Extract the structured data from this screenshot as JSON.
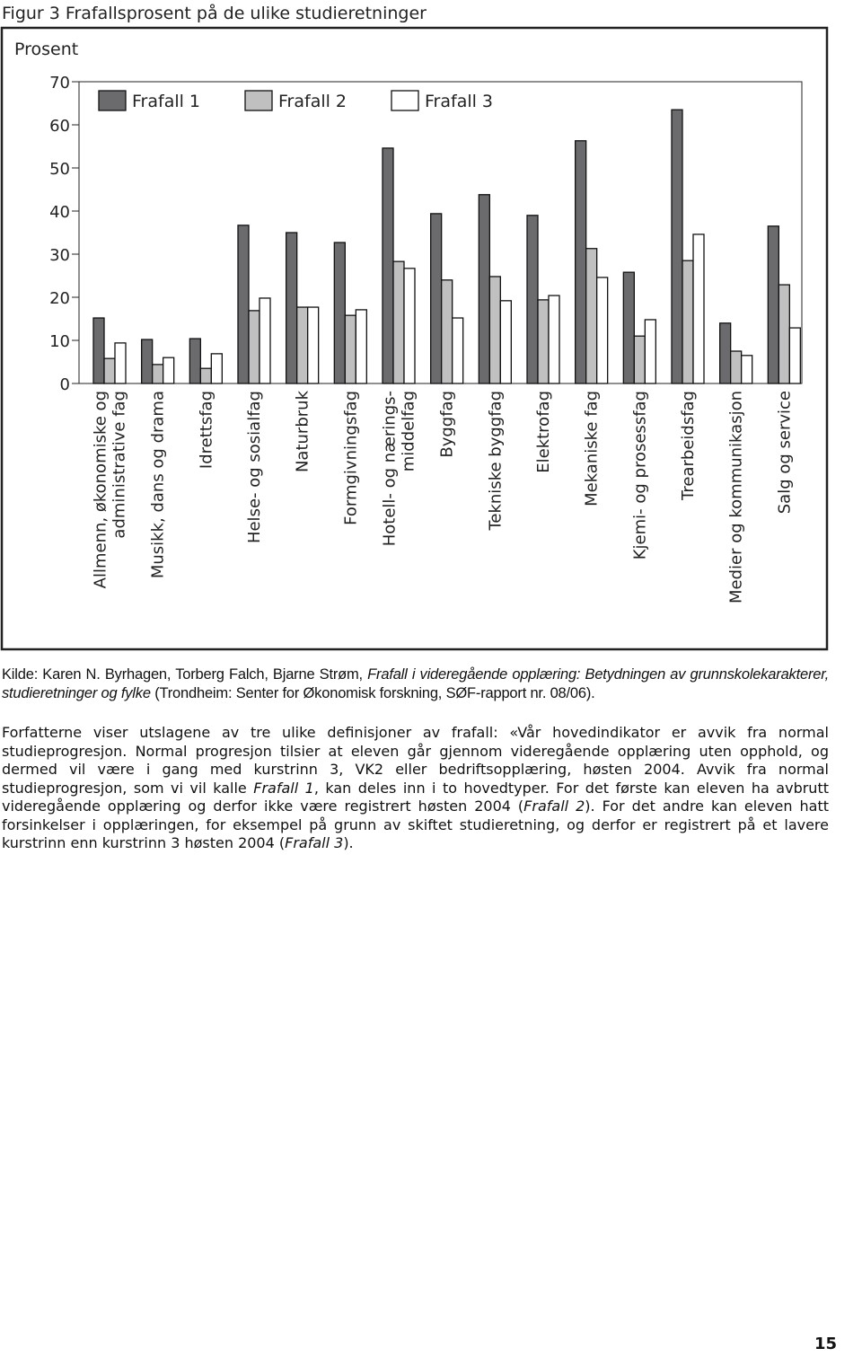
{
  "figure_title": "Figur 3 Frafallsprosent på de ulike studieretninger",
  "chart_data": {
    "type": "bar",
    "y_label": "Prosent",
    "categories": [
      "Allmenn, økonomiske og\nadministrative fag",
      "Musikk, dans og drama",
      "Idrettsfag",
      "Helse- og sosialfag",
      "Naturbruk",
      "Formgivningsfag",
      "Hotell- og nærings-\nmiddelfag",
      "Byggfag",
      "Tekniske byggfag",
      "Elektrofag",
      "Mekaniske fag",
      "Kjemi- og prosessfag",
      "Trearbeidsfag",
      "Medier og kommunikasjon",
      "Salg og service"
    ],
    "series": [
      {
        "name": "Frafall 1",
        "color": "#6b6b6e",
        "values": [
          15.2,
          10.2,
          10.4,
          36.7,
          35,
          32.7,
          54.6,
          39.4,
          43.8,
          39,
          56.3,
          25.8,
          63.5,
          14,
          36.5
        ]
      },
      {
        "name": "Frafall 2",
        "color": "#c0c0c0",
        "values": [
          5.8,
          4.4,
          3.5,
          16.9,
          17.7,
          15.8,
          28.3,
          24,
          24.8,
          19.4,
          31.3,
          11,
          28.5,
          7.5,
          22.9
        ]
      },
      {
        "name": "Frafall 3",
        "color": "#ffffff",
        "values": [
          9.4,
          6,
          6.9,
          19.8,
          17.7,
          17.1,
          26.7,
          15.2,
          19.2,
          20.4,
          24.6,
          14.8,
          34.6,
          6.5,
          12.9
        ]
      }
    ],
    "ylim": [
      0,
      70
    ],
    "yticks": [
      0,
      10,
      20,
      30,
      40,
      50,
      60,
      70
    ],
    "legend": "top-left"
  },
  "source": [
    "Kilde: Karen N. Byrhagen, Torberg Falch, Bjarne Strøm, ",
    "Frafall i videregående opplæring: Betydningen av grunnskolekarakterer, studieretninger og fylke",
    " (Trondheim: Senter for Økonomisk forskning, SØF-rapport nr. 08/06)."
  ],
  "paragraph": [
    "Forfatterne viser utslagene av tre ulike definisjoner av frafall: «Vår hovedindikator er avvik fra normal studieprogresjon. Normal progresjon tilsier at eleven går gjennom videregående opplæring uten opphold, og dermed vil være i gang med kurstrinn 3, VK2 eller bedriftsopplæring, høsten 2004. Avvik fra normal studieprogresjon, som vi vil kalle ",
    "Frafall 1",
    ", kan deles inn i to hovedtyper. For det første kan eleven ha avbrutt videregående opplæring og derfor ikke være registrert høsten 2004 (",
    "Frafall 2",
    "). For det andre kan eleven hatt forsinkelser i opplæringen, for eksempel på grunn av skiftet studieretning, og derfor er registrert på et lavere kurstrinn enn kurstrinn 3 høsten 2004 (",
    "Frafall 3",
    ")."
  ],
  "page_number": "15"
}
